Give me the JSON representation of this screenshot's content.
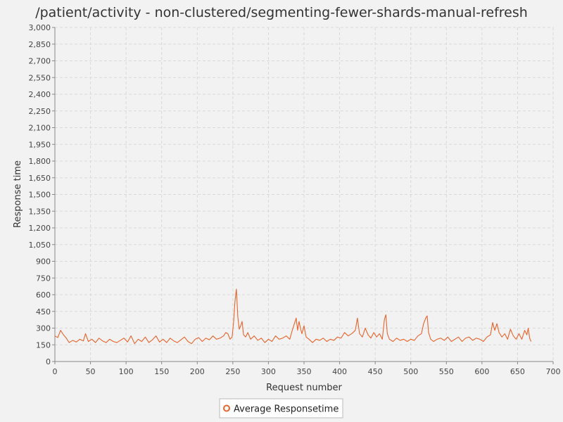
{
  "chart_data": {
    "type": "line",
    "title": "/patient/activity - non-clustered/segmenting-fewer-shards-manual-refresh",
    "xlabel": "Request number",
    "ylabel": "Response time",
    "xlim": [
      0,
      700
    ],
    "ylim": [
      0,
      3000
    ],
    "x_ticks": [
      "0",
      "50",
      "100",
      "150",
      "200",
      "250",
      "300",
      "350",
      "400",
      "450",
      "500",
      "550",
      "600",
      "650",
      "700"
    ],
    "y_ticks": [
      "0",
      "150",
      "300",
      "450",
      "600",
      "750",
      "900",
      "1,050",
      "1,200",
      "1,350",
      "1,500",
      "1,650",
      "1,800",
      "1,950",
      "2,100",
      "2,250",
      "2,400",
      "2,550",
      "2,700",
      "2,850",
      "3,000"
    ],
    "grid": true,
    "legend_position": "bottom-center",
    "series": [
      {
        "name": "Average Responsetime",
        "color": "#e8642c",
        "points": [
          [
            0,
            230
          ],
          [
            4,
            215
          ],
          [
            8,
            280
          ],
          [
            12,
            240
          ],
          [
            16,
            210
          ],
          [
            20,
            170
          ],
          [
            25,
            190
          ],
          [
            30,
            175
          ],
          [
            35,
            200
          ],
          [
            40,
            185
          ],
          [
            43,
            250
          ],
          [
            47,
            180
          ],
          [
            52,
            200
          ],
          [
            57,
            170
          ],
          [
            62,
            210
          ],
          [
            67,
            185
          ],
          [
            72,
            170
          ],
          [
            77,
            200
          ],
          [
            82,
            180
          ],
          [
            87,
            170
          ],
          [
            92,
            190
          ],
          [
            97,
            210
          ],
          [
            102,
            175
          ],
          [
            107,
            230
          ],
          [
            112,
            160
          ],
          [
            117,
            200
          ],
          [
            122,
            180
          ],
          [
            127,
            220
          ],
          [
            132,
            170
          ],
          [
            137,
            195
          ],
          [
            142,
            230
          ],
          [
            147,
            175
          ],
          [
            152,
            200
          ],
          [
            157,
            170
          ],
          [
            162,
            210
          ],
          [
            167,
            185
          ],
          [
            172,
            170
          ],
          [
            177,
            195
          ],
          [
            182,
            220
          ],
          [
            187,
            180
          ],
          [
            192,
            160
          ],
          [
            197,
            200
          ],
          [
            202,
            215
          ],
          [
            207,
            180
          ],
          [
            212,
            210
          ],
          [
            217,
            195
          ],
          [
            222,
            230
          ],
          [
            227,
            200
          ],
          [
            232,
            210
          ],
          [
            237,
            230
          ],
          [
            240,
            260
          ],
          [
            243,
            250
          ],
          [
            246,
            200
          ],
          [
            249,
            220
          ],
          [
            251,
            350
          ],
          [
            253,
            540
          ],
          [
            255,
            650
          ],
          [
            257,
            400
          ],
          [
            259,
            290
          ],
          [
            261,
            320
          ],
          [
            263,
            360
          ],
          [
            265,
            240
          ],
          [
            268,
            220
          ],
          [
            271,
            260
          ],
          [
            275,
            200
          ],
          [
            280,
            230
          ],
          [
            285,
            190
          ],
          [
            290,
            210
          ],
          [
            295,
            170
          ],
          [
            300,
            200
          ],
          [
            305,
            180
          ],
          [
            310,
            230
          ],
          [
            315,
            200
          ],
          [
            320,
            210
          ],
          [
            325,
            230
          ],
          [
            330,
            200
          ],
          [
            333,
            270
          ],
          [
            337,
            350
          ],
          [
            339,
            390
          ],
          [
            341,
            280
          ],
          [
            343,
            360
          ],
          [
            345,
            300
          ],
          [
            347,
            250
          ],
          [
            350,
            320
          ],
          [
            353,
            220
          ],
          [
            357,
            200
          ],
          [
            362,
            170
          ],
          [
            367,
            200
          ],
          [
            372,
            190
          ],
          [
            377,
            210
          ],
          [
            382,
            180
          ],
          [
            387,
            200
          ],
          [
            392,
            190
          ],
          [
            397,
            220
          ],
          [
            402,
            210
          ],
          [
            407,
            260
          ],
          [
            412,
            230
          ],
          [
            417,
            250
          ],
          [
            422,
            280
          ],
          [
            425,
            390
          ],
          [
            428,
            250
          ],
          [
            432,
            220
          ],
          [
            436,
            300
          ],
          [
            440,
            240
          ],
          [
            444,
            210
          ],
          [
            448,
            260
          ],
          [
            452,
            220
          ],
          [
            456,
            250
          ],
          [
            460,
            200
          ],
          [
            463,
            380
          ],
          [
            465,
            420
          ],
          [
            467,
            250
          ],
          [
            470,
            200
          ],
          [
            475,
            180
          ],
          [
            480,
            210
          ],
          [
            485,
            190
          ],
          [
            490,
            200
          ],
          [
            495,
            180
          ],
          [
            500,
            200
          ],
          [
            505,
            190
          ],
          [
            510,
            230
          ],
          [
            515,
            250
          ],
          [
            518,
            340
          ],
          [
            521,
            390
          ],
          [
            523,
            410
          ],
          [
            525,
            260
          ],
          [
            528,
            200
          ],
          [
            532,
            180
          ],
          [
            537,
            200
          ],
          [
            542,
            210
          ],
          [
            547,
            190
          ],
          [
            552,
            220
          ],
          [
            557,
            180
          ],
          [
            562,
            200
          ],
          [
            567,
            220
          ],
          [
            572,
            180
          ],
          [
            577,
            210
          ],
          [
            582,
            220
          ],
          [
            587,
            190
          ],
          [
            592,
            210
          ],
          [
            597,
            200
          ],
          [
            602,
            180
          ],
          [
            607,
            220
          ],
          [
            612,
            240
          ],
          [
            615,
            350
          ],
          [
            618,
            280
          ],
          [
            621,
            340
          ],
          [
            624,
            260
          ],
          [
            628,
            220
          ],
          [
            632,
            250
          ],
          [
            636,
            200
          ],
          [
            640,
            290
          ],
          [
            644,
            230
          ],
          [
            648,
            200
          ],
          [
            652,
            250
          ],
          [
            656,
            200
          ],
          [
            660,
            280
          ],
          [
            663,
            240
          ],
          [
            665,
            300
          ],
          [
            667,
            210
          ],
          [
            669,
            180
          ]
        ]
      }
    ]
  }
}
